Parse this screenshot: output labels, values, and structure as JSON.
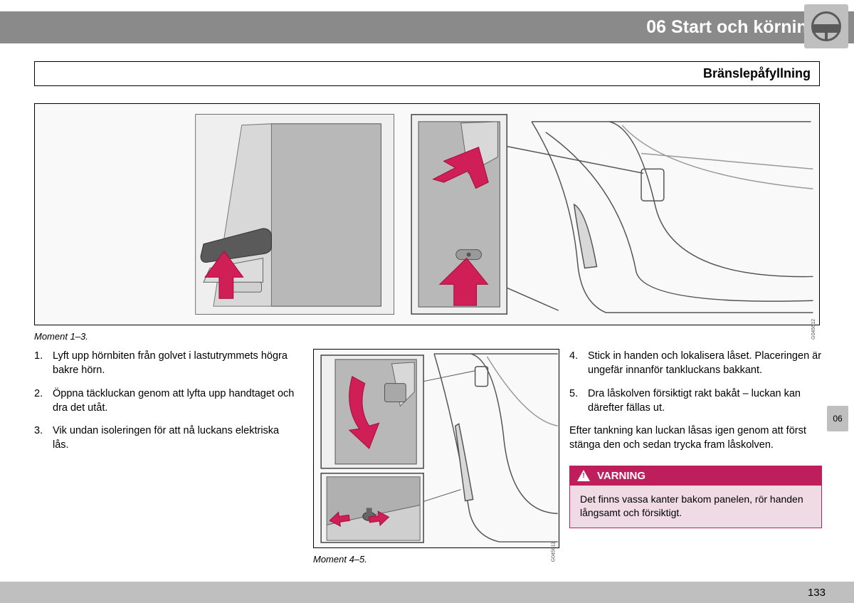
{
  "header": {
    "chapter": "06 Start och körning"
  },
  "subheader": {
    "title": "Bränslepåfyllning"
  },
  "figures": {
    "top_caption": "Moment 1–3.",
    "bottom_caption": "Moment 4–5.",
    "top_code": "G045612",
    "bottom_code": "G045611"
  },
  "instructions_left": [
    {
      "n": "1.",
      "t": "Lyft upp hörnbiten från golvet i lastutrymmets högra bakre hörn."
    },
    {
      "n": "2.",
      "t": "Öppna täckluckan genom att lyfta upp handtaget och dra det utåt."
    },
    {
      "n": "3.",
      "t": "Vik undan isoleringen för att nå luckans elektriska lås."
    }
  ],
  "instructions_right": [
    {
      "n": "4.",
      "t": "Stick in handen och lokalisera låset. Placeringen är ungefär innanför tankluckans bakkant."
    },
    {
      "n": "5.",
      "t": "Dra låskolven försiktigt rakt bakåt – luckan kan därefter fällas ut."
    }
  ],
  "after_text": "Efter tankning kan luckan låsas igen genom att först stänga den och sedan trycka fram låskolven.",
  "warning": {
    "label": "VARNING",
    "body": "Det finns vassa kanter bakom panelen, rör handen långsamt och försiktigt."
  },
  "sidebar_tab": "06",
  "page_number": "133",
  "colors": {
    "header_bg": "#8a8a8a",
    "box_bg": "#bfbfbf",
    "arrow": "#c4124a",
    "arrow_fill": "#d01e56",
    "warn": "#be1e5b",
    "warn_body": "#f0dbe4",
    "panel_grey": "#b8b8b8",
    "panel_border": "#555555",
    "figure_bg": "#f9f9f9"
  }
}
